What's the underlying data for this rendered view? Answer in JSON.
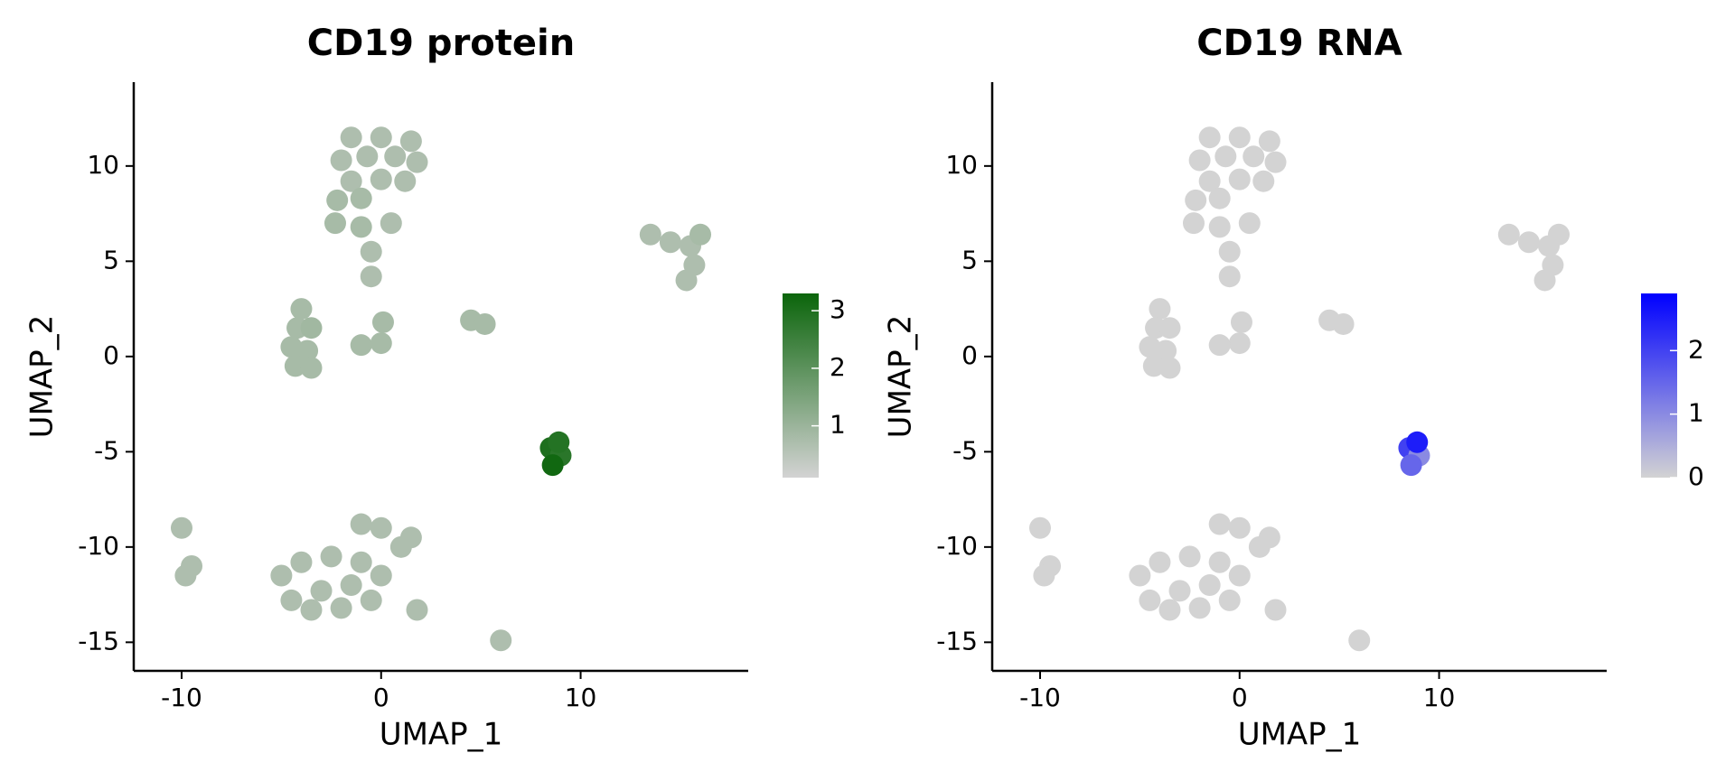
{
  "chart_data": [
    {
      "type": "scatter",
      "title": "CD19 protein",
      "xlabel": "UMAP_1",
      "ylabel": "UMAP_2",
      "x": [
        -1.5,
        0,
        1.5,
        -2,
        -0.7,
        0.7,
        1.8,
        -1.5,
        0,
        1.2,
        -2.2,
        -1,
        -2.3,
        -1,
        0.5,
        -0.5,
        -0.5,
        -4,
        -4.2,
        -3.5,
        -4.5,
        -3.7,
        -4.3,
        -3.5,
        0,
        -1,
        0.1,
        4.5,
        5.2,
        8.5,
        9,
        8.6,
        8.9,
        13.5,
        14.5,
        15.5,
        16,
        15.7,
        15.3,
        -5,
        -4,
        -2.5,
        -1,
        -4.5,
        -3,
        -1.5,
        0,
        -3.5,
        -2,
        -0.5,
        1,
        1.5,
        -1,
        0,
        1.8,
        -10,
        -9.5,
        -9.8,
        6
      ],
      "y": [
        11.5,
        11.5,
        11.3,
        10.3,
        10.5,
        10.5,
        10.2,
        9.2,
        9.3,
        9.2,
        8.2,
        8.3,
        7,
        6.8,
        7,
        5.5,
        4.2,
        2.5,
        1.5,
        1.5,
        0.5,
        0.3,
        -0.5,
        -0.6,
        0.7,
        0.6,
        1.8,
        1.9,
        1.7,
        -4.8,
        -5.2,
        -5.7,
        -4.5,
        6.4,
        6,
        5.8,
        6.4,
        4.8,
        4,
        -11.5,
        -10.8,
        -10.5,
        -10.8,
        -12.8,
        -12.3,
        -12,
        -11.5,
        -13.3,
        -13.2,
        -12.8,
        -10,
        -9.5,
        -8.8,
        -9,
        -13.3,
        -9,
        -11,
        -11.5,
        -14.9
      ],
      "values": [
        0.7,
        0.7,
        0.7,
        0.7,
        0.7,
        0.7,
        0.7,
        0.7,
        0.7,
        0.7,
        0.8,
        0.8,
        0.8,
        0.8,
        0.7,
        0.7,
        0.7,
        0.8,
        0.8,
        0.9,
        0.8,
        0.8,
        0.8,
        0.8,
        0.8,
        0.8,
        0.8,
        0.8,
        0.8,
        3,
        2.8,
        3.2,
        2.9,
        0.7,
        0.7,
        0.7,
        0.8,
        0.7,
        0.7,
        0.7,
        0.7,
        0.7,
        0.7,
        0.7,
        0.7,
        0.7,
        0.7,
        0.7,
        0.7,
        0.7,
        0.7,
        0.7,
        0.7,
        0.7,
        0.7,
        0.7,
        0.7,
        0.7,
        0.7
      ],
      "xlim": [
        -12.4,
        18.4
      ],
      "ylim": [
        -16.5,
        14.4
      ],
      "xticks": [
        -10,
        0,
        10
      ],
      "yticks": [
        -15,
        -10,
        -5,
        0,
        5,
        10
      ],
      "colorbar": {
        "lim": [
          0.1,
          3.3
        ],
        "ticks": [
          1,
          2,
          3
        ],
        "colors": [
          "#d3d3d3",
          "#0b650b"
        ]
      }
    },
    {
      "type": "scatter",
      "title": "CD19 RNA",
      "xlabel": "UMAP_1",
      "ylabel": "UMAP_2",
      "x": [
        -1.5,
        0,
        1.5,
        -2,
        -0.7,
        0.7,
        1.8,
        -1.5,
        0,
        1.2,
        -2.2,
        -1,
        -2.3,
        -1,
        0.5,
        -0.5,
        -0.5,
        -4,
        -4.2,
        -3.5,
        -4.5,
        -3.7,
        -4.3,
        -3.5,
        0,
        -1,
        0.1,
        4.5,
        5.2,
        8.5,
        9,
        8.6,
        8.9,
        13.5,
        14.5,
        15.5,
        16,
        15.7,
        15.3,
        -5,
        -4,
        -2.5,
        -1,
        -4.5,
        -3,
        -1.5,
        0,
        -3.5,
        -2,
        -0.5,
        1,
        1.5,
        -1,
        0,
        1.8,
        -10,
        -9.5,
        -9.8,
        6
      ],
      "y": [
        11.5,
        11.5,
        11.3,
        10.3,
        10.5,
        10.5,
        10.2,
        9.2,
        9.3,
        9.2,
        8.2,
        8.3,
        7,
        6.8,
        7,
        5.5,
        4.2,
        2.5,
        1.5,
        1.5,
        0.5,
        0.3,
        -0.5,
        -0.6,
        0.7,
        0.6,
        1.8,
        1.9,
        1.7,
        -4.8,
        -5.2,
        -5.7,
        -4.5,
        6.4,
        6,
        5.8,
        6.4,
        4.8,
        4,
        -11.5,
        -10.8,
        -10.5,
        -10.8,
        -12.8,
        -12.3,
        -12,
        -11.5,
        -13.3,
        -13.2,
        -12.8,
        -10,
        -9.5,
        -8.8,
        -9,
        -13.3,
        -9,
        -11,
        -11.5,
        -14.9
      ],
      "values": [
        0,
        0,
        0,
        0,
        0,
        0,
        0,
        0,
        0,
        0,
        0,
        0,
        0,
        0,
        0,
        0,
        0,
        0,
        0,
        0,
        0,
        0,
        0,
        0,
        0,
        0,
        0,
        0,
        0,
        2,
        1,
        1.5,
        2.5,
        0,
        0,
        0,
        0,
        0,
        0,
        0,
        0,
        0,
        0,
        0,
        0,
        0,
        0,
        0,
        0,
        0,
        0,
        0,
        0,
        0,
        0,
        0,
        0,
        0,
        0
      ],
      "xlim": [
        -12.4,
        18.4
      ],
      "ylim": [
        -16.5,
        14.4
      ],
      "xticks": [
        -10,
        0,
        10
      ],
      "yticks": [
        -15,
        -10,
        -5,
        0,
        5,
        10
      ],
      "colorbar": {
        "lim": [
          0,
          2.9
        ],
        "ticks": [
          0,
          1,
          2
        ],
        "colors": [
          "#d3d3d3",
          "#0000ff"
        ]
      }
    }
  ]
}
